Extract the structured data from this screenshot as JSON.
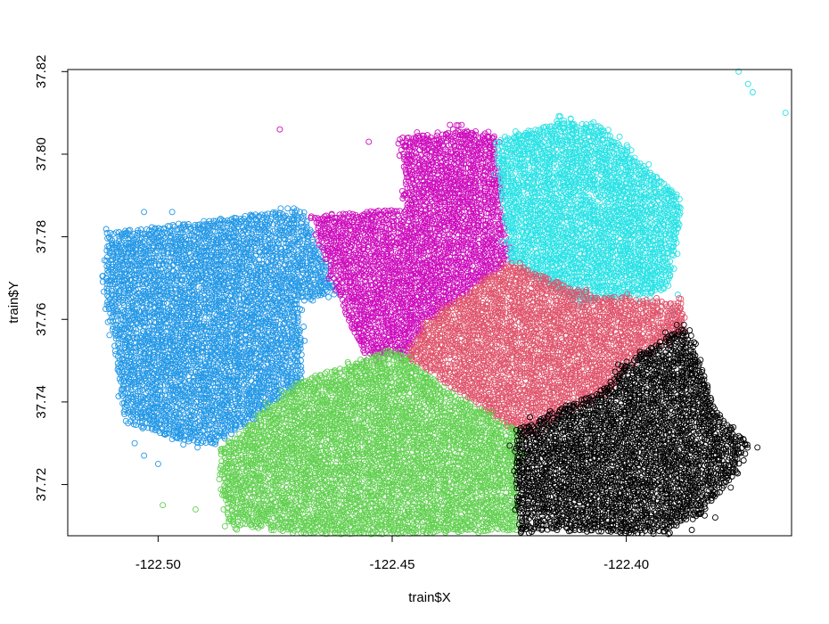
{
  "chart_data": {
    "type": "scatter",
    "xlabel": "train$X",
    "ylabel": "train$Y",
    "xlim": [
      -122.5193,
      -122.3647
    ],
    "ylim": [
      37.7076,
      37.8205
    ],
    "x_ticks": [
      -122.5,
      -122.45,
      -122.4
    ],
    "x_tick_labels": [
      "-122.50",
      "-122.45",
      "-122.40"
    ],
    "y_ticks": [
      37.72,
      37.74,
      37.76,
      37.78,
      37.8,
      37.82
    ],
    "y_tick_labels": [
      "37.72",
      "37.74",
      "37.76",
      "37.78",
      "37.80",
      "37.82"
    ],
    "grid": false,
    "legend": "none",
    "marker": "open-circle",
    "clusters": [
      {
        "color": "#2297E6",
        "regions": [
          [
            [
              -122.511,
              37.781
            ],
            [
              -122.475,
              37.786
            ],
            [
              -122.469,
              37.786
            ],
            [
              -122.462,
              37.767
            ],
            [
              -122.47,
              37.764
            ],
            [
              -122.469,
              37.745
            ],
            [
              -122.487,
              37.73
            ],
            [
              -122.493,
              37.73
            ],
            [
              -122.507,
              37.735
            ],
            [
              -122.511,
              37.765
            ]
          ]
        ],
        "extra_points": [
          [
            -122.509,
            37.778
          ],
          [
            -122.503,
            37.786
          ],
          [
            -122.497,
            37.786
          ],
          [
            -122.505,
            37.73
          ],
          [
            -122.5,
            37.725
          ],
          [
            -122.503,
            37.727
          ],
          [
            -122.497,
            37.731
          ]
        ]
      },
      {
        "color": "#CD0BBC",
        "regions": [
          [
            [
              -122.467,
              37.785
            ],
            [
              -122.447,
              37.787
            ],
            [
              -122.448,
              37.804
            ],
            [
              -122.436,
              37.806
            ],
            [
              -122.428,
              37.804
            ],
            [
              -122.425,
              37.774
            ],
            [
              -122.443,
              37.759
            ],
            [
              -122.447,
              37.751
            ],
            [
              -122.456,
              37.751
            ],
            [
              -122.462,
              37.767
            ]
          ]
        ],
        "extra_points": [
          [
            -122.474,
            37.806
          ],
          [
            -122.445,
            37.804
          ],
          [
            -122.437,
            37.806
          ],
          [
            -122.455,
            37.803
          ]
        ]
      },
      {
        "color": "#28E2E5",
        "regions": [
          [
            [
              -122.428,
              37.803
            ],
            [
              -122.415,
              37.808
            ],
            [
              -122.406,
              37.807
            ],
            [
              -122.399,
              37.8
            ],
            [
              -122.388,
              37.789
            ],
            [
              -122.391,
              37.767
            ],
            [
              -122.41,
              37.764
            ],
            [
              -122.425,
              37.774
            ]
          ]
        ],
        "extra_points": [
          [
            -122.376,
            37.82
          ],
          [
            -122.374,
            37.817
          ],
          [
            -122.373,
            37.815
          ],
          [
            -122.366,
            37.81
          ],
          [
            -122.39,
            37.762
          ],
          [
            -122.389,
            37.766
          ]
        ]
      },
      {
        "color": "#DF536B",
        "regions": [
          [
            [
              -122.425,
              37.774
            ],
            [
              -122.408,
              37.766
            ],
            [
              -122.388,
              37.764
            ],
            [
              -122.388,
              37.757
            ],
            [
              -122.398,
              37.751
            ],
            [
              -122.404,
              37.742
            ],
            [
              -122.42,
              37.733
            ],
            [
              -122.424,
              37.733
            ],
            [
              -122.447,
              37.751
            ],
            [
              -122.443,
              37.759
            ]
          ]
        ],
        "extra_points": []
      },
      {
        "color": "#61D04F",
        "regions": [
          [
            [
              -122.45,
              37.753
            ],
            [
              -122.437,
              37.742
            ],
            [
              -122.423,
              37.733
            ],
            [
              -122.423,
              37.709
            ],
            [
              -122.448,
              37.708
            ],
            [
              -122.467,
              37.708
            ],
            [
              -122.485,
              37.71
            ],
            [
              -122.487,
              37.728
            ],
            [
              -122.47,
              37.745
            ]
          ]
        ],
        "extra_points": [
          [
            -122.486,
            37.714
          ],
          [
            -122.484,
            37.711
          ],
          [
            -122.499,
            37.715
          ],
          [
            -122.492,
            37.714
          ],
          [
            -122.485,
            37.725
          ]
        ]
      },
      {
        "color": "#000000",
        "regions": [
          [
            [
              -122.424,
              37.733
            ],
            [
              -122.405,
              37.743
            ],
            [
              -122.398,
              37.751
            ],
            [
              -122.388,
              37.758
            ],
            [
              -122.385,
              37.752
            ],
            [
              -122.381,
              37.738
            ],
            [
              -122.374,
              37.73
            ],
            [
              -122.377,
              37.722
            ],
            [
              -122.384,
              37.713
            ],
            [
              -122.393,
              37.708
            ],
            [
              -122.42,
              37.709
            ],
            [
              -122.423,
              37.709
            ]
          ]
        ],
        "extra_points": [
          [
            -122.372,
            37.729
          ],
          [
            -122.375,
            37.731
          ],
          [
            -122.381,
            37.712
          ],
          [
            -122.386,
            37.709
          ],
          [
            -122.391,
            37.708
          ]
        ]
      }
    ]
  }
}
